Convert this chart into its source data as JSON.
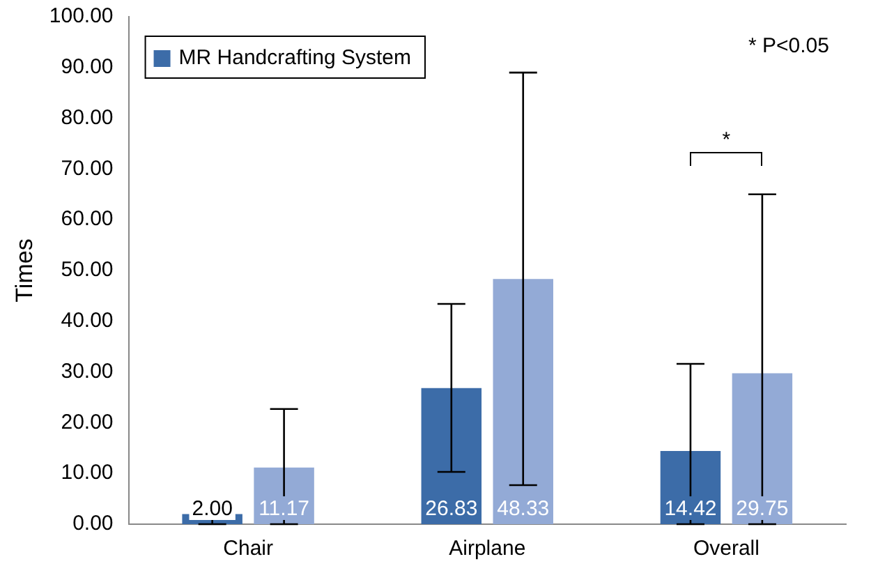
{
  "chart_data": {
    "type": "bar",
    "ylabel": "Times",
    "categories": [
      "Chair",
      "Airplane",
      "Overall"
    ],
    "series": [
      {
        "name": "MR Handcrafting System",
        "color": "#3c6ca8",
        "values": [
          2.0,
          26.83,
          14.42
        ],
        "value_labels": [
          "2.00",
          "26.83",
          "14.42"
        ],
        "errors": [
          [
            0,
            5
          ],
          [
            10.3,
            43.4
          ],
          [
            0,
            31.6
          ]
        ]
      },
      {
        "color": "#93aad6",
        "values": [
          11.17,
          48.33,
          29.75
        ],
        "value_labels": [
          "11.17",
          "48.33",
          "29.75"
        ],
        "errors": [
          [
            0,
            22.7
          ],
          [
            7.7,
            89
          ],
          [
            0,
            65
          ]
        ]
      }
    ],
    "ylim": [
      0,
      100
    ],
    "yticks": [
      {
        "value": 0,
        "label": "0.00"
      },
      {
        "value": 10,
        "label": "10.00"
      },
      {
        "value": 20,
        "label": "20.00"
      },
      {
        "value": 30,
        "label": "30.00"
      },
      {
        "value": 40,
        "label": "40.00"
      },
      {
        "value": 50,
        "label": "50.00"
      },
      {
        "value": 60,
        "label": "60.00"
      },
      {
        "value": 70,
        "label": "70.00"
      },
      {
        "value": 80,
        "label": "80.00"
      },
      {
        "value": 90,
        "label": "90.00"
      },
      {
        "value": 100,
        "label": "100.00"
      }
    ],
    "grid": false,
    "legend": "top left",
    "annotations": [
      "* P<0.05",
      "*"
    ]
  }
}
